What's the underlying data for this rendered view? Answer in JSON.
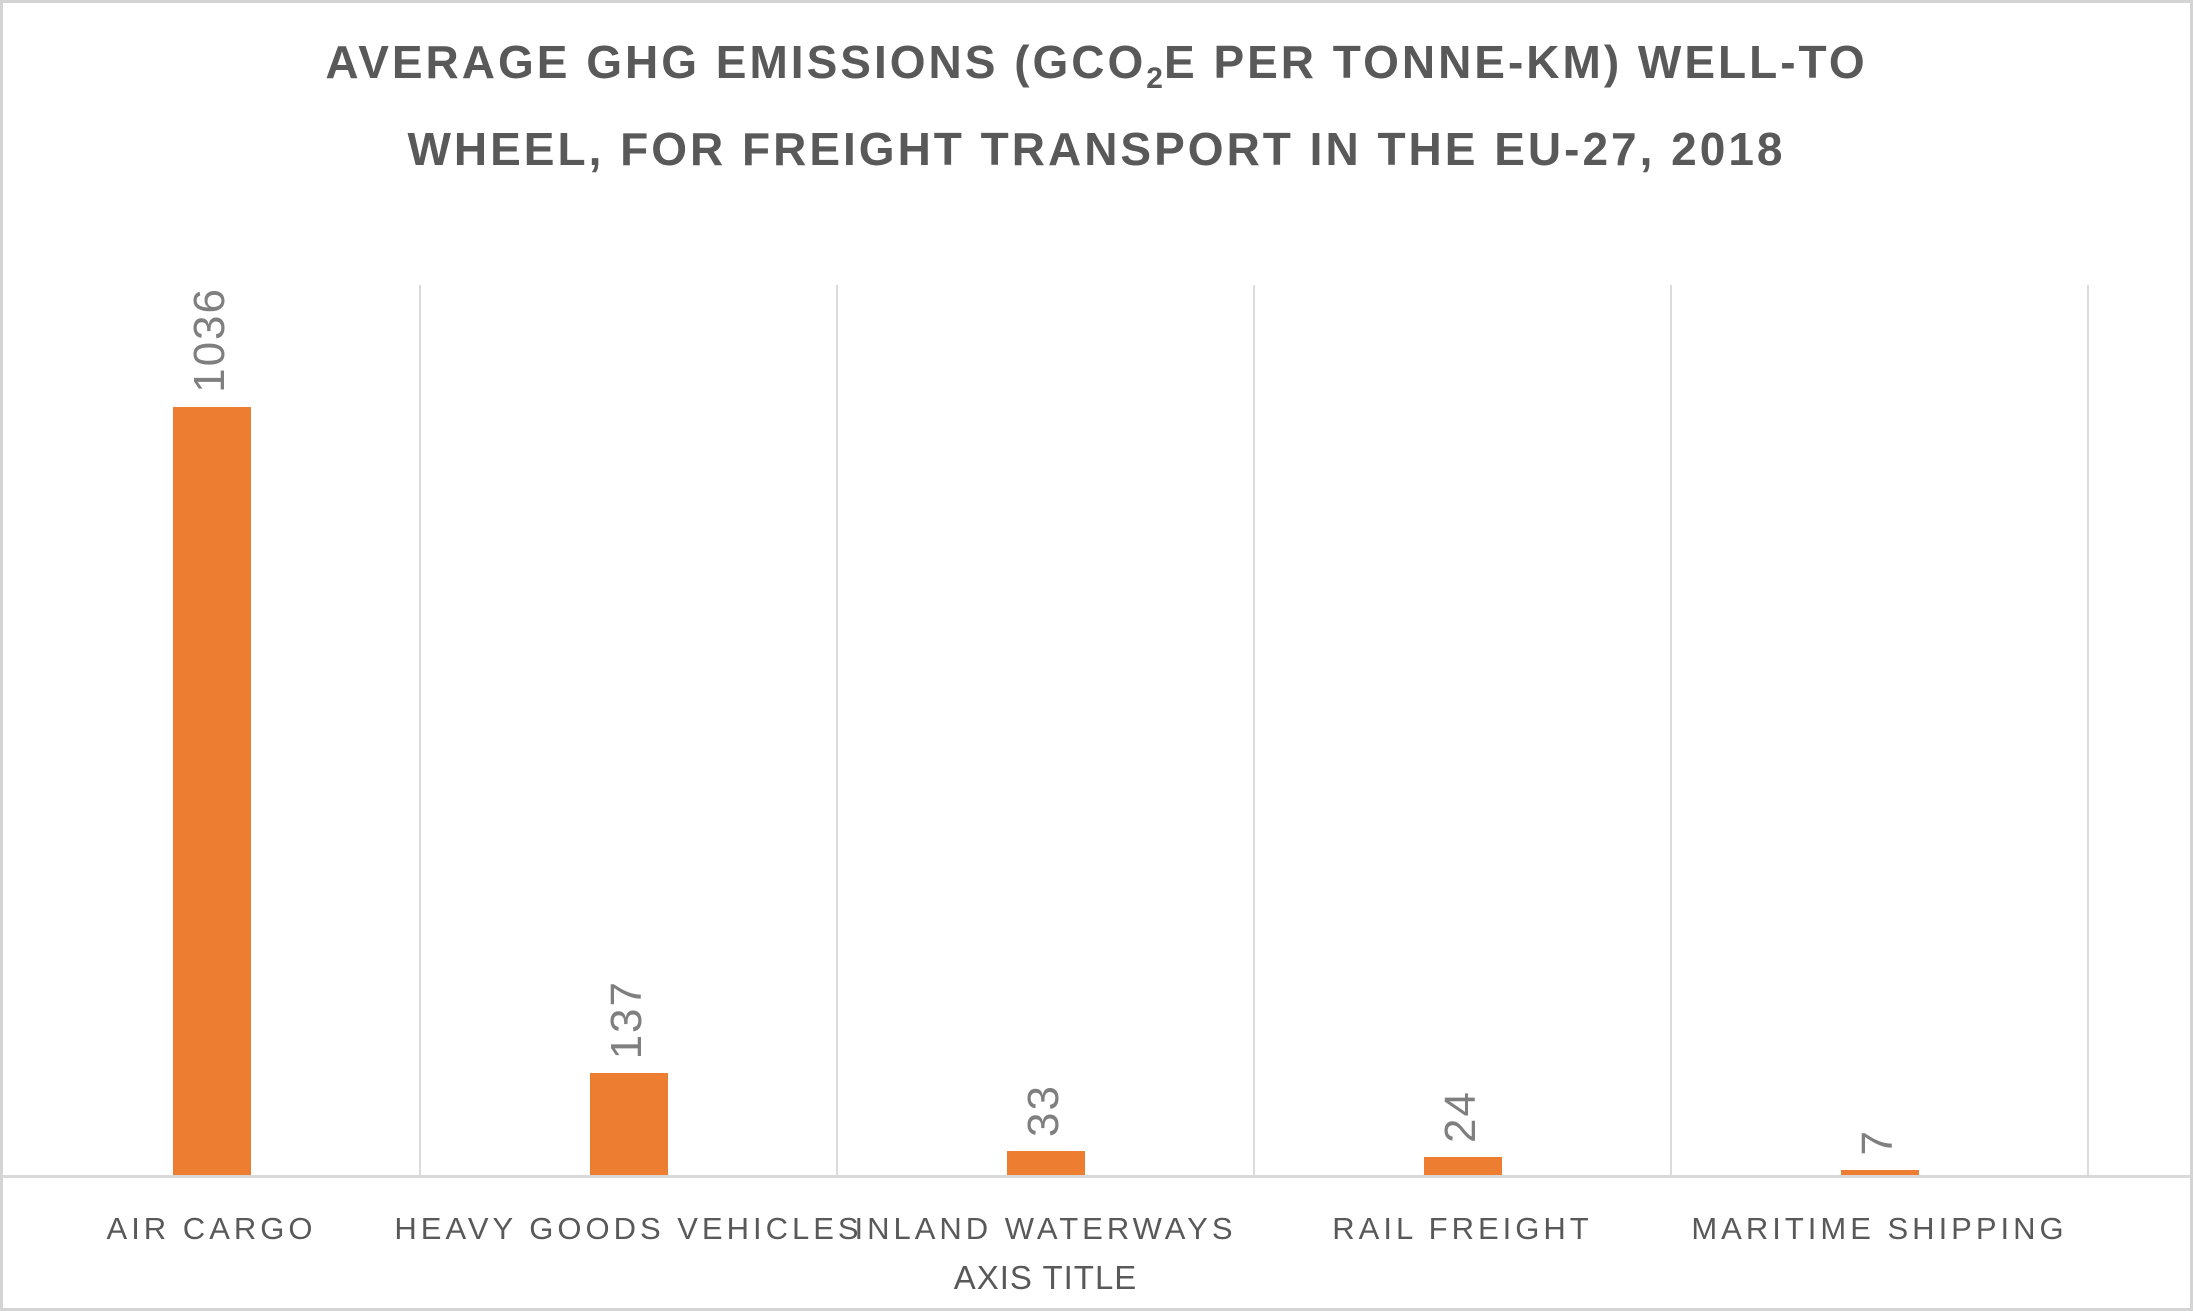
{
  "chart_data": {
    "type": "bar",
    "title": "AVERAGE GHG EMISSIONS (GCO2E PER TONNE-KM) WELL-TO WHEEL, FOR FREIGHT TRANSPORT IN THE EU-27, 2018",
    "title_line1_pre": "AVERAGE GHG EMISSIONS (GCO",
    "title_line1_sub": "2",
    "title_line1_post": "E PER TONNE-KM) WELL-TO",
    "title_line2": "WHEEL, FOR FREIGHT TRANSPORT IN THE EU-27, 2018",
    "categories": [
      "AIR CARGO",
      "HEAVY GOODS VEHICLES",
      "INLAND WATERWAYS",
      "RAIL FREIGHT",
      "MARITIME SHIPPING"
    ],
    "values": [
      1036,
      137,
      33,
      24,
      7
    ],
    "data_labels": [
      "1036",
      "137",
      "33",
      "24",
      "7"
    ],
    "xlabel": "AXIS TITLE",
    "ylabel": "",
    "ylim": [
      0,
      1200
    ],
    "legend": "none",
    "grid": "vertical category boundary gridlines only",
    "data_label_style": "outside end, rotated 90 degrees",
    "colors": {
      "bar": "#ED7D31",
      "title_text": "#595959",
      "data_label_text": "#7F7F7F",
      "axis_text": "#595959",
      "gridline": "#DBDBDB",
      "axis_line": "#D9D9D9"
    }
  }
}
